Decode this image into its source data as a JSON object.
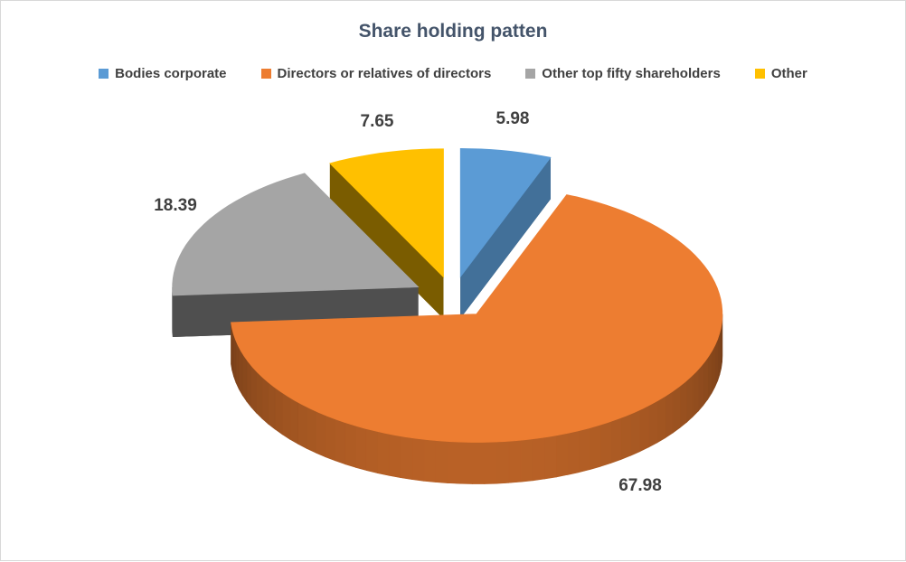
{
  "chart_data": {
    "type": "pie",
    "style": "3d-exploded",
    "title": "Share holding patten",
    "legend_position": "top",
    "start_angle_deg": 0,
    "direction": "clockwise",
    "labels": [
      "Bodies corporate",
      "Directors or relatives of directors",
      "Other top fifty shareholders",
      "Other"
    ],
    "values": [
      5.98,
      67.98,
      18.39,
      7.65
    ],
    "data_labels": [
      "5.98",
      "67.98",
      "18.39",
      "7.65"
    ],
    "colors": [
      "#5B9BD5",
      "#ED7D31",
      "#A5A5A5",
      "#FFC000"
    ],
    "title_color": "#44546A",
    "label_color": "#404040",
    "border_color": "#D8D8D8",
    "background_color": "#FFFFFF"
  }
}
